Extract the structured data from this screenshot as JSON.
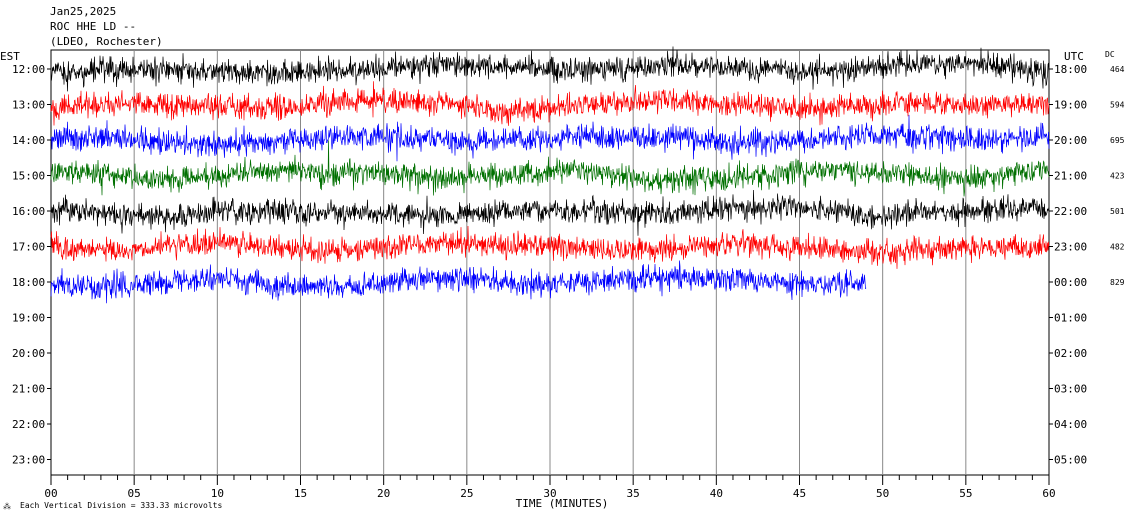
{
  "header": {
    "date": "Jan25,2025",
    "station": "ROC HHE LD --",
    "location": "(LDEO, Rochester)"
  },
  "footer": {
    "scale_note": "Each Vertical Division =  333.33 microvolts"
  },
  "chart_data": {
    "type": "line",
    "title": "ROC HHE LD --",
    "xlabel": "TIME (MINUTES)",
    "left_axis_label": "EST",
    "right_axis_label": "UTC",
    "dc_label": "DC",
    "x_ticks": [
      "00",
      "05",
      "10",
      "15",
      "20",
      "25",
      "30",
      "35",
      "40",
      "45",
      "50",
      "55",
      "60"
    ],
    "xlim": [
      0,
      60
    ],
    "left_hours": [
      "12:00",
      "13:00",
      "14:00",
      "15:00",
      "16:00",
      "17:00",
      "18:00",
      "19:00",
      "20:00",
      "21:00",
      "22:00",
      "23:00"
    ],
    "right_hours": [
      "18:00",
      "19:00",
      "20:00",
      "21:00",
      "22:00",
      "23:00",
      "00:00",
      "01:00",
      "02:00",
      "03:00",
      "04:00",
      "05:00"
    ],
    "grid_vertical_every_minutes": 5,
    "color_cycle": [
      "#000000",
      "#ff0000",
      "#0000ff",
      "#007000"
    ],
    "series": [
      {
        "hour_est": "12:00",
        "color": "#000000",
        "dc": "464",
        "end_minute": 60
      },
      {
        "hour_est": "13:00",
        "color": "#ff0000",
        "dc": "594",
        "end_minute": 60
      },
      {
        "hour_est": "14:00",
        "color": "#0000ff",
        "dc": "695",
        "end_minute": 60
      },
      {
        "hour_est": "15:00",
        "color": "#007000",
        "dc": "423",
        "end_minute": 60
      },
      {
        "hour_est": "16:00",
        "color": "#000000",
        "dc": "501",
        "end_minute": 60
      },
      {
        "hour_est": "17:00",
        "color": "#ff0000",
        "dc": "482",
        "end_minute": 60
      },
      {
        "hour_est": "18:00",
        "color": "#0000ff",
        "dc": "829",
        "end_minute": 49
      }
    ]
  }
}
